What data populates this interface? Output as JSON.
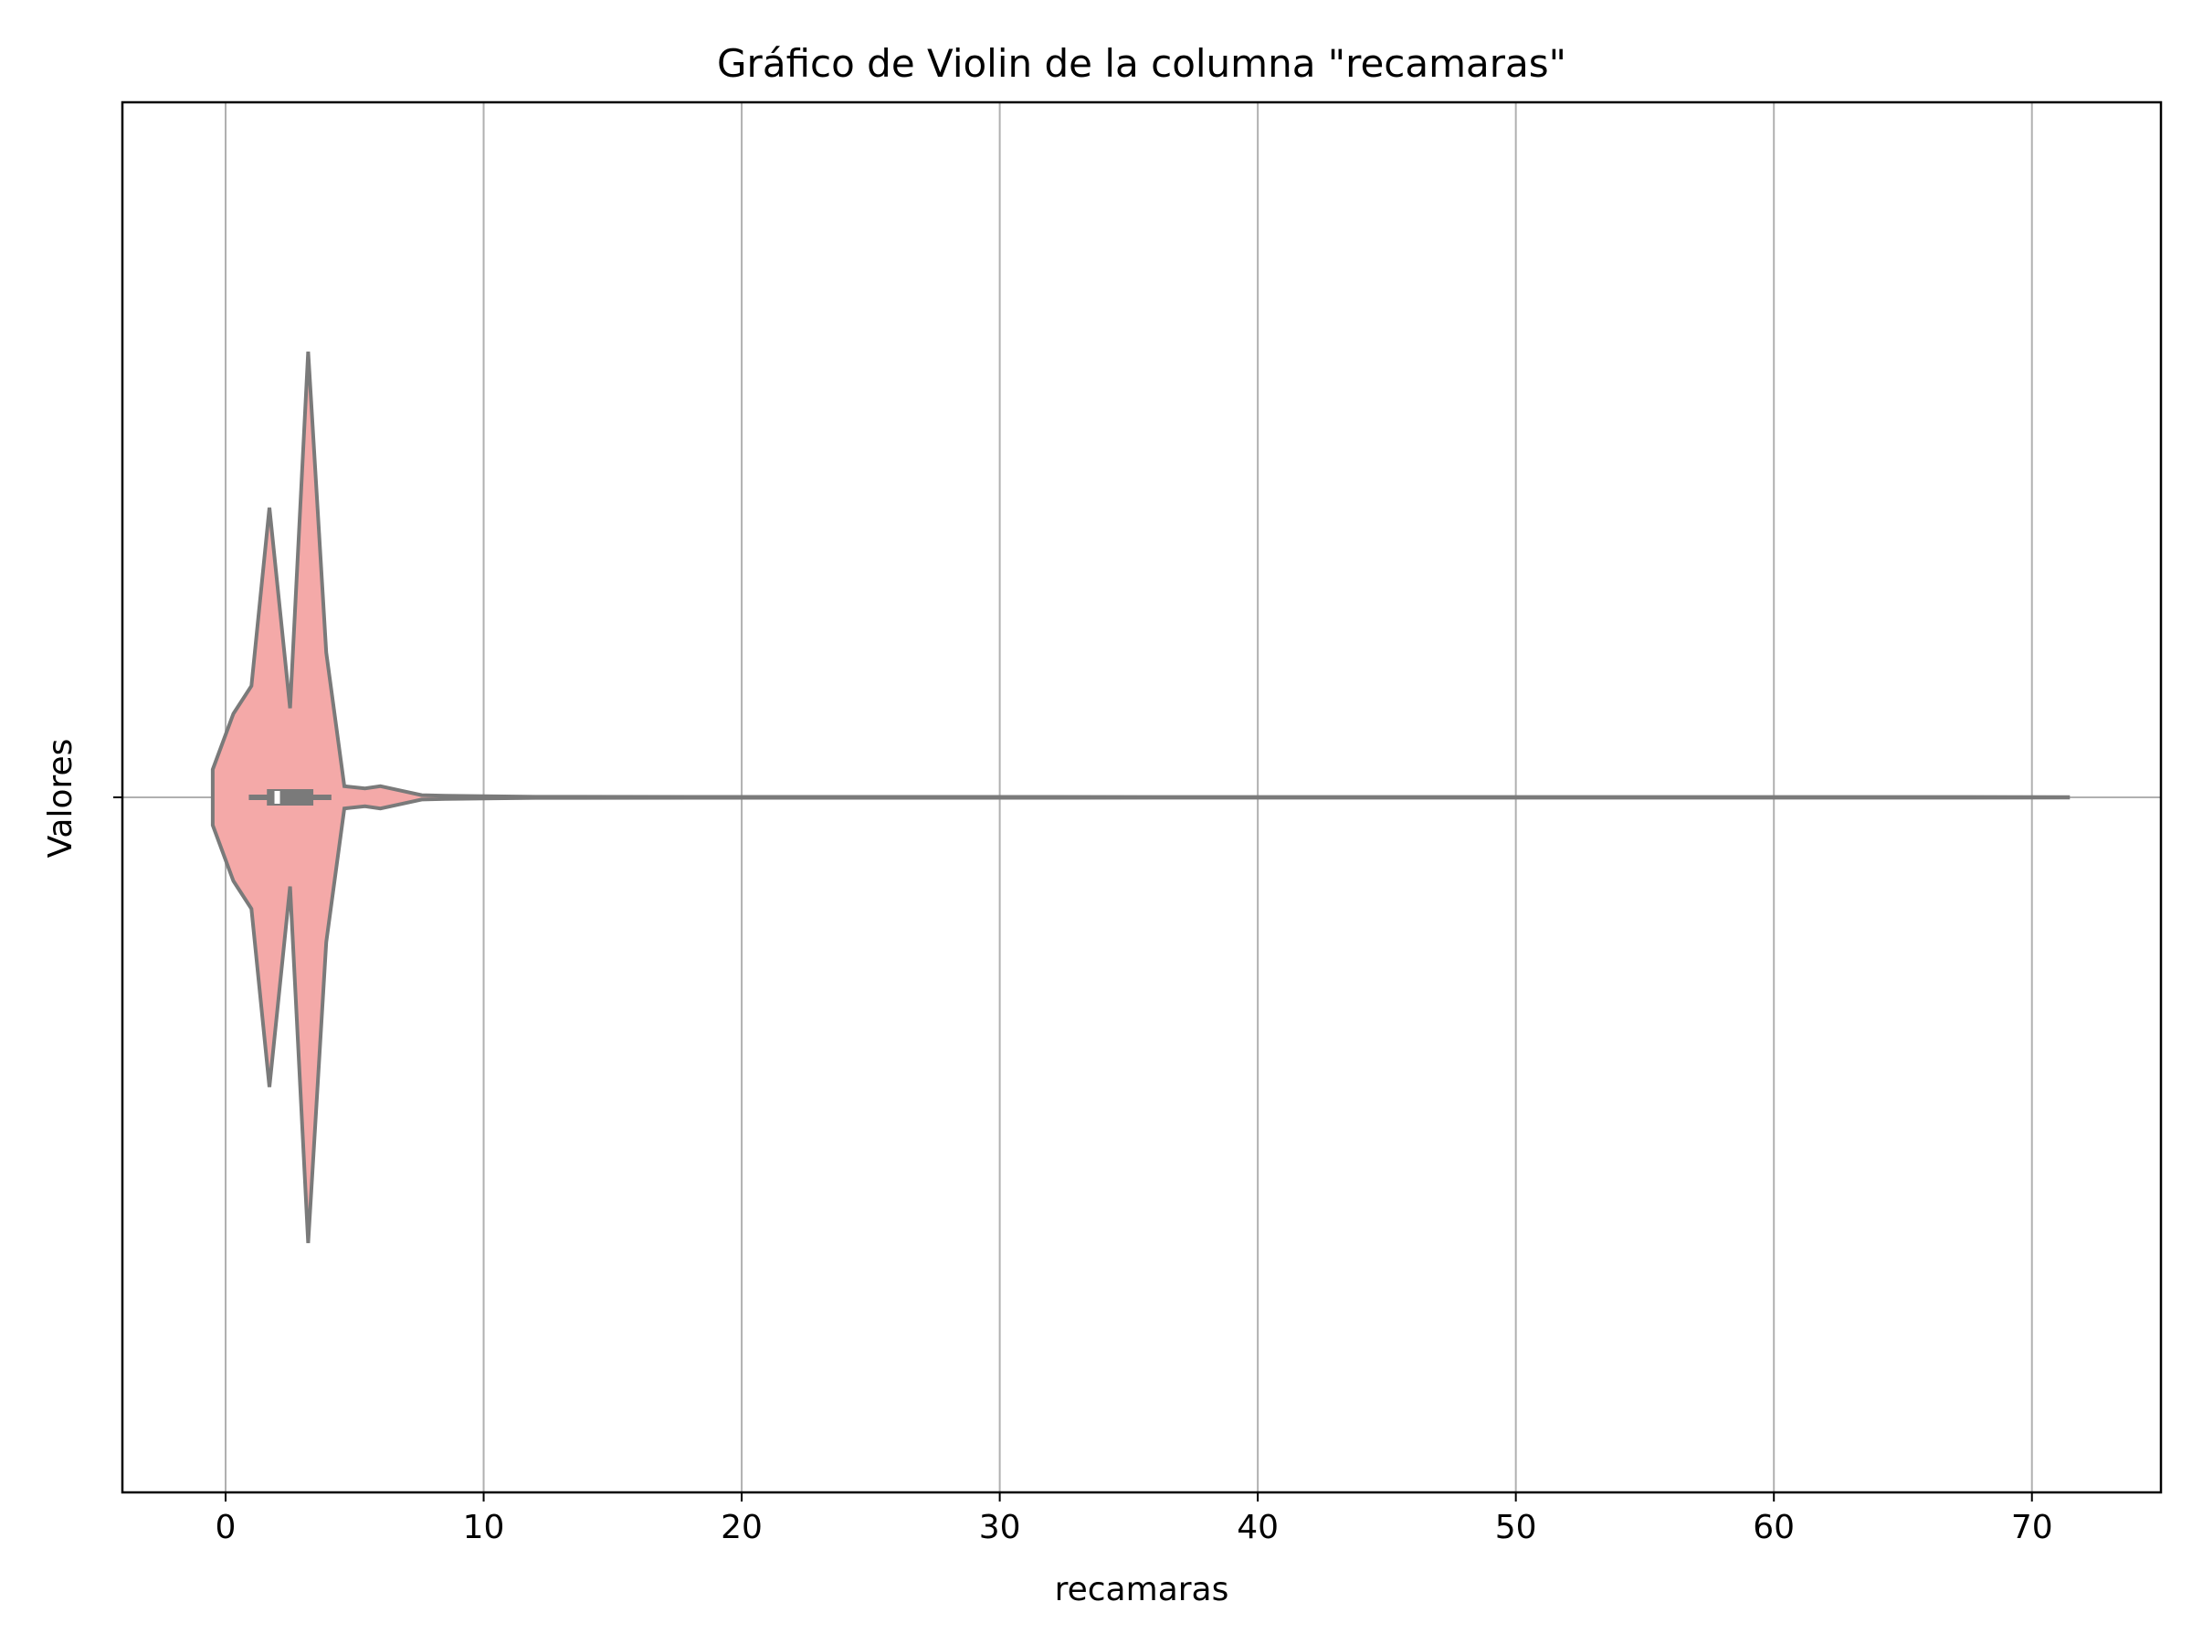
{
  "chart_data": {
    "type": "violin",
    "orientation": "horizontal",
    "title": "Gráfico de Violin de la columna \"recamaras\"",
    "xlabel": "recamaras",
    "ylabel": "Valores",
    "xlim": [
      -4,
      75
    ],
    "xticks": [
      0,
      10,
      20,
      30,
      40,
      50,
      60,
      70
    ],
    "grid": true,
    "fill_color": "#f4a9a8",
    "line_color": "#7a7a7a",
    "grid_color": "#b0b0b0",
    "violin": {
      "density_profile": [
        [
          -0.5,
          0.05
        ],
        [
          0.3,
          0.15
        ],
        [
          1.0,
          0.2
        ],
        [
          1.7,
          0.52
        ],
        [
          2.5,
          0.16
        ],
        [
          3.2,
          0.8
        ],
        [
          3.9,
          0.26
        ],
        [
          4.6,
          0.02
        ],
        [
          5.4,
          0.016
        ],
        [
          6.0,
          0.02
        ],
        [
          6.8,
          0.012
        ],
        [
          7.6,
          0.004
        ],
        [
          8.5,
          0.003
        ],
        [
          10.0,
          0.002
        ],
        [
          12.0,
          0.001
        ],
        [
          20.0,
          0.0008
        ],
        [
          40.0,
          0.0006
        ],
        [
          60.0,
          0.0006
        ],
        [
          71.4,
          0.0005
        ]
      ],
      "box": {
        "q1": 1.6,
        "median": 2.0,
        "q3": 3.4,
        "whisker_low": 0.9,
        "whisker_high": 4.1
      }
    }
  }
}
